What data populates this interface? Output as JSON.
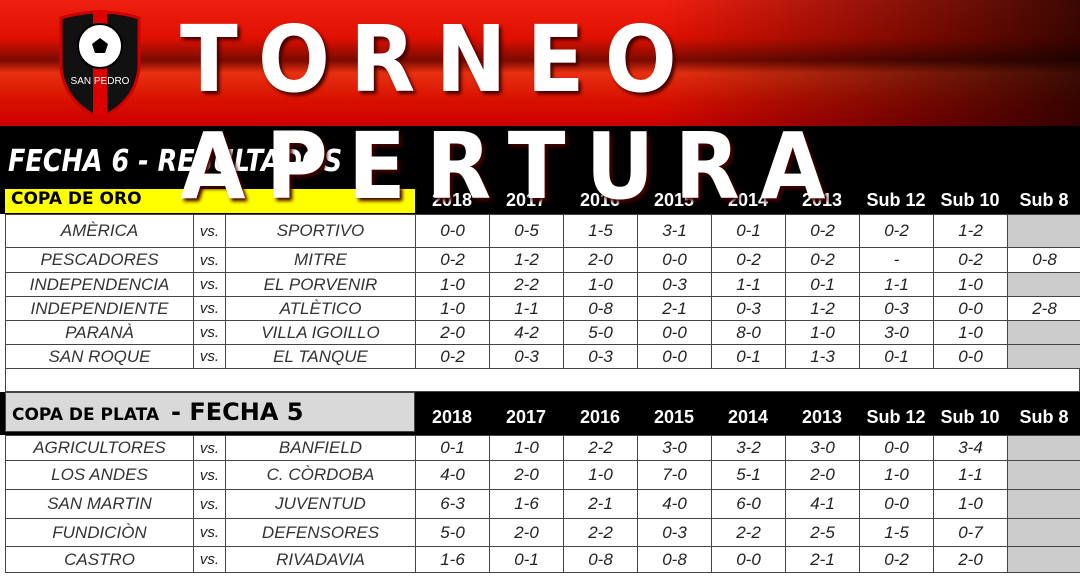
{
  "banner": {
    "title": "TORNEO APERTURA",
    "logo_text": "SAN PEDRO"
  },
  "fecha_title": "FECHA 6 - RESULTADOS",
  "columns": [
    "2018",
    "2017",
    "2016",
    "2015",
    "2014",
    "2013",
    "Sub 12",
    "Sub 10",
    "Sub 8"
  ],
  "vs_label": "vs.",
  "colors": {
    "gold_bg": "#ffff00",
    "silver_bg": "#d9d9d9",
    "empty_cell": "#cccccc",
    "banner_red": "#e01000"
  },
  "oro": {
    "label": "COPA DE ORO",
    "matches": [
      {
        "home": "AMÈRICA",
        "away": "SPORTIVO",
        "scores": [
          "0-0",
          "0-5",
          "1-5",
          "3-1",
          "0-1",
          "0-2",
          "0-2",
          "1-2",
          ""
        ]
      },
      {
        "home": "PESCADORES",
        "away": "MITRE",
        "scores": [
          "0-2",
          "1-2",
          "2-0",
          "0-0",
          "0-2",
          "0-2",
          "-",
          "0-2",
          "0-8"
        ]
      },
      {
        "home": "INDEPENDENCIA",
        "away": "EL PORVENIR",
        "scores": [
          "1-0",
          "2-2",
          "1-0",
          "0-3",
          "1-1",
          "0-1",
          "1-1",
          "1-0",
          ""
        ]
      },
      {
        "home": "INDEPENDIENTE",
        "away": "ATLÈTICO",
        "scores": [
          "1-0",
          "1-1",
          "0-8",
          "2-1",
          "0-3",
          "1-2",
          "0-3",
          "0-0",
          "2-8"
        ]
      },
      {
        "home": "PARANÀ",
        "away": "VILLA IGOILLO",
        "scores": [
          "2-0",
          "4-2",
          "5-0",
          "0-0",
          "8-0",
          "1-0",
          "3-0",
          "1-0",
          ""
        ]
      },
      {
        "home": "SAN ROQUE",
        "away": "EL TANQUE",
        "scores": [
          "0-2",
          "0-3",
          "0-3",
          "0-0",
          "0-1",
          "1-3",
          "0-1",
          "0-0",
          ""
        ]
      }
    ]
  },
  "plata": {
    "label": "COPA DE PLATA",
    "fecha": "- FECHA 5",
    "matches": [
      {
        "home": "AGRICULTORES",
        "away": "BANFIELD",
        "scores": [
          "0-1",
          "1-0",
          "2-2",
          "3-0",
          "3-2",
          "3-0",
          "0-0",
          "3-4",
          ""
        ]
      },
      {
        "home": "LOS ANDES",
        "away": "C. CÒRDOBA",
        "scores": [
          "4-0",
          "2-0",
          "1-0",
          "7-0",
          "5-1",
          "2-0",
          "1-0",
          "1-1",
          ""
        ]
      },
      {
        "home": "SAN MARTIN",
        "away": "JUVENTUD",
        "scores": [
          "6-3",
          "1-6",
          "2-1",
          "4-0",
          "6-0",
          "4-1",
          "0-0",
          "1-0",
          ""
        ]
      },
      {
        "home": "FUNDICIÒN",
        "away": "DEFENSORES",
        "scores": [
          "5-0",
          "2-0",
          "2-2",
          "0-3",
          "2-2",
          "2-5",
          "1-5",
          "0-7",
          ""
        ]
      },
      {
        "home": "CASTRO",
        "away": "RIVADAVIA",
        "scores": [
          "1-6",
          "0-1",
          "0-8",
          "0-8",
          "0-0",
          "2-1",
          "0-2",
          "2-0",
          ""
        ]
      }
    ]
  }
}
